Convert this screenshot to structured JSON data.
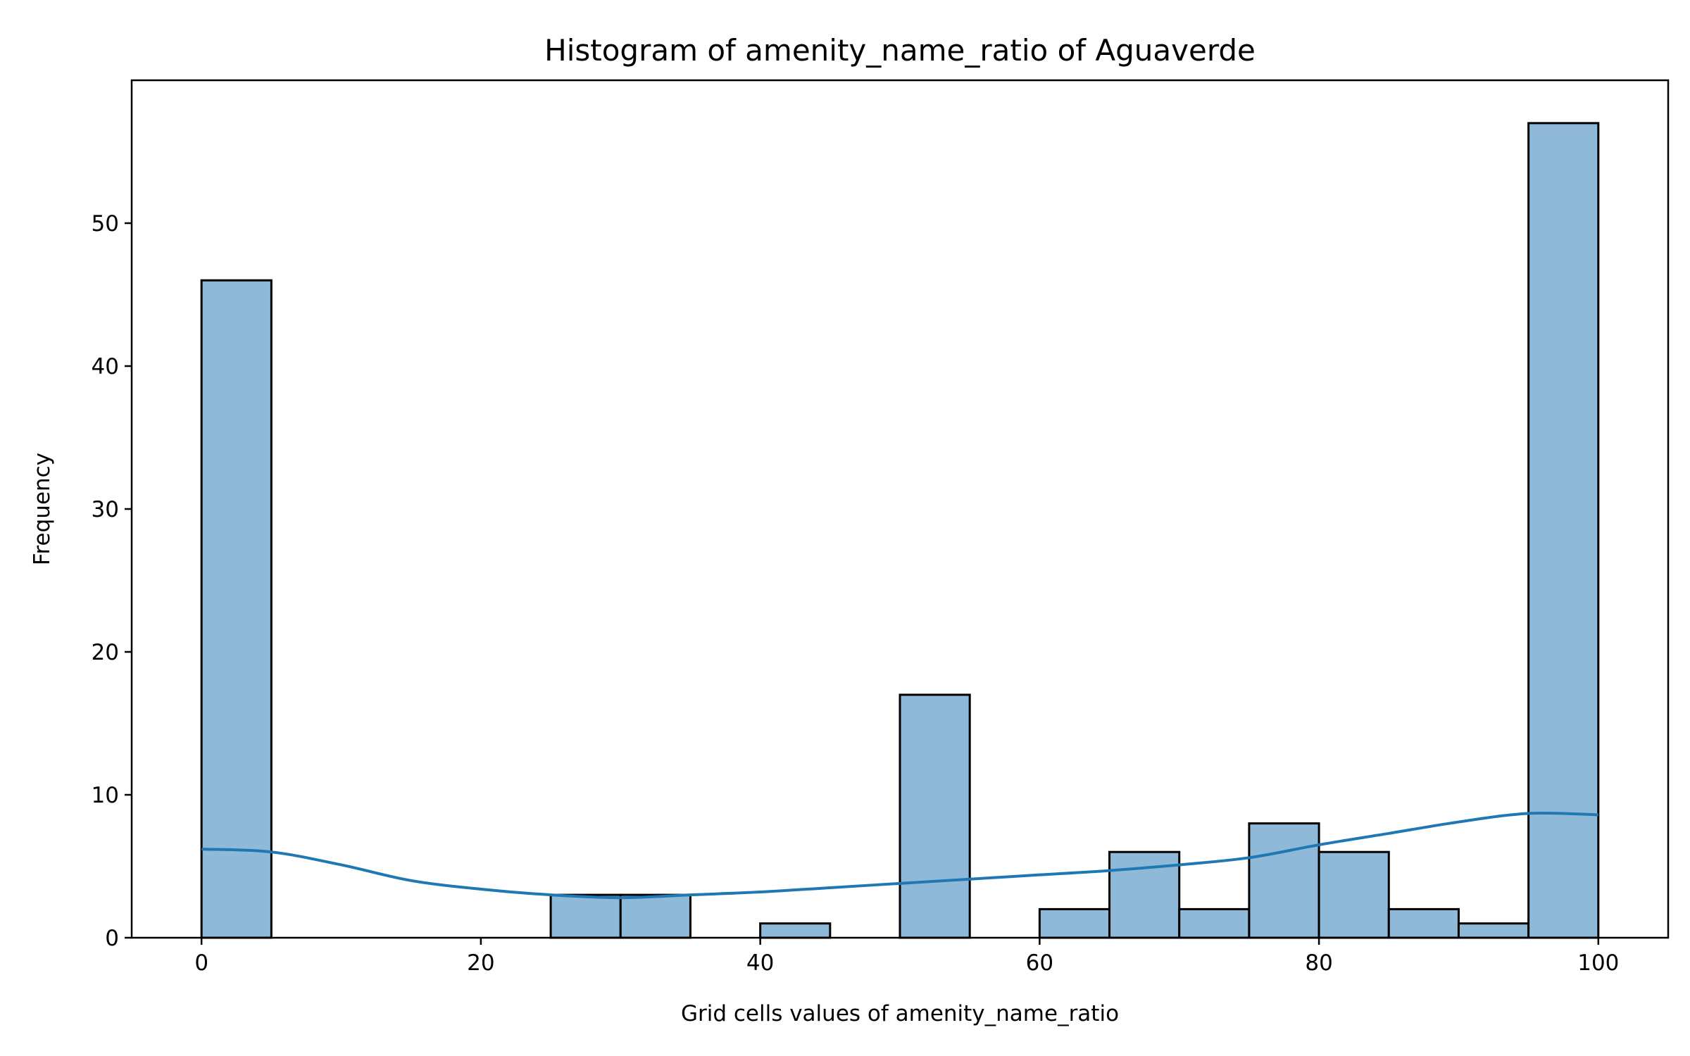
{
  "chart_data": {
    "type": "bar",
    "title": "Histogram of amenity_name_ratio of Aguaverde",
    "xlabel": "Grid cells values of amenity_name_ratio",
    "ylabel": "Frequency",
    "xlim": [
      -5,
      105
    ],
    "ylim": [
      0,
      60
    ],
    "x_ticks": [
      0,
      20,
      40,
      60,
      80,
      100
    ],
    "y_ticks": [
      0,
      10,
      20,
      30,
      40,
      50
    ],
    "bins": [
      {
        "x0": 0,
        "x1": 5,
        "count": 46
      },
      {
        "x0": 5,
        "x1": 10,
        "count": 0
      },
      {
        "x0": 10,
        "x1": 15,
        "count": 0
      },
      {
        "x0": 15,
        "x1": 20,
        "count": 0
      },
      {
        "x0": 20,
        "x1": 25,
        "count": 0
      },
      {
        "x0": 25,
        "x1": 30,
        "count": 3
      },
      {
        "x0": 30,
        "x1": 35,
        "count": 3
      },
      {
        "x0": 35,
        "x1": 40,
        "count": 0
      },
      {
        "x0": 40,
        "x1": 45,
        "count": 1
      },
      {
        "x0": 45,
        "x1": 50,
        "count": 0
      },
      {
        "x0": 50,
        "x1": 55,
        "count": 17
      },
      {
        "x0": 55,
        "x1": 60,
        "count": 0
      },
      {
        "x0": 60,
        "x1": 65,
        "count": 2
      },
      {
        "x0": 65,
        "x1": 70,
        "count": 6
      },
      {
        "x0": 70,
        "x1": 75,
        "count": 2
      },
      {
        "x0": 75,
        "x1": 80,
        "count": 8
      },
      {
        "x0": 80,
        "x1": 85,
        "count": 6
      },
      {
        "x0": 85,
        "x1": 90,
        "count": 2
      },
      {
        "x0": 90,
        "x1": 95,
        "count": 1
      },
      {
        "x0": 95,
        "x1": 100,
        "count": 57
      }
    ],
    "kde": {
      "x": [
        0,
        5,
        10,
        15,
        20,
        25,
        30,
        35,
        40,
        45,
        50,
        55,
        60,
        65,
        70,
        75,
        80,
        85,
        90,
        95,
        100
      ],
      "y": [
        6.2,
        6.0,
        5.1,
        4.0,
        3.4,
        3.0,
        2.8,
        3.0,
        3.2,
        3.5,
        3.8,
        4.1,
        4.4,
        4.7,
        5.1,
        5.6,
        6.5,
        7.3,
        8.1,
        8.7,
        8.6
      ]
    },
    "grid": false,
    "colors": {
      "bar_fill": "#8fb9d8",
      "bar_edge": "#000000",
      "kde_line": "#1f77b4",
      "axes": "#000000"
    }
  }
}
